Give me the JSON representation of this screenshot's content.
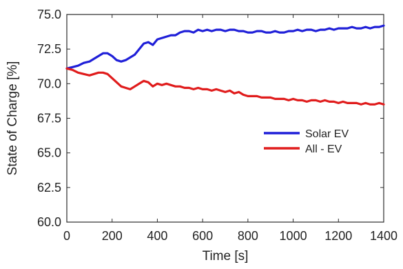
{
  "chart_data": {
    "type": "line",
    "xlabel": "Time [s]",
    "ylabel": "State of Charge [%]",
    "xlim": [
      0,
      1400
    ],
    "ylim": [
      60.0,
      75.0
    ],
    "xticks": [
      0,
      200,
      400,
      600,
      800,
      1000,
      1200,
      1400
    ],
    "yticks": [
      60.0,
      62.5,
      65.0,
      67.5,
      70.0,
      72.5,
      75.0
    ],
    "xtick_labels": [
      "0",
      "200",
      "400",
      "600",
      "800",
      "1000",
      "1200",
      "1400"
    ],
    "ytick_labels": [
      "60.0",
      "62.5",
      "65.0",
      "67.5",
      "70.0",
      "72.5",
      "75.0"
    ],
    "grid": false,
    "legend_position": "right",
    "series": [
      {
        "name": "Solar EV",
        "color": "#1f1fd8",
        "x": [
          0,
          25,
          50,
          75,
          100,
          120,
          140,
          160,
          180,
          200,
          220,
          240,
          260,
          280,
          300,
          320,
          340,
          360,
          380,
          400,
          420,
          440,
          460,
          480,
          500,
          520,
          540,
          560,
          580,
          600,
          620,
          640,
          660,
          680,
          700,
          720,
          740,
          760,
          780,
          800,
          820,
          840,
          860,
          880,
          900,
          920,
          940,
          960,
          980,
          1000,
          1020,
          1040,
          1060,
          1080,
          1100,
          1120,
          1140,
          1160,
          1180,
          1200,
          1220,
          1240,
          1260,
          1280,
          1300,
          1320,
          1340,
          1360,
          1380,
          1400
        ],
        "y": [
          71.1,
          71.2,
          71.3,
          71.5,
          71.6,
          71.8,
          72.0,
          72.2,
          72.2,
          72.0,
          71.7,
          71.6,
          71.7,
          71.9,
          72.1,
          72.5,
          72.9,
          73.0,
          72.8,
          73.2,
          73.3,
          73.4,
          73.5,
          73.5,
          73.7,
          73.8,
          73.8,
          73.7,
          73.9,
          73.8,
          73.9,
          73.8,
          73.9,
          73.9,
          73.8,
          73.9,
          73.9,
          73.8,
          73.8,
          73.7,
          73.7,
          73.8,
          73.8,
          73.7,
          73.7,
          73.8,
          73.7,
          73.7,
          73.8,
          73.8,
          73.9,
          73.8,
          73.9,
          73.9,
          73.8,
          73.9,
          73.9,
          74.0,
          73.9,
          74.0,
          74.0,
          74.0,
          74.1,
          74.0,
          74.0,
          74.1,
          74.0,
          74.1,
          74.1,
          74.2
        ]
      },
      {
        "name": "All - EV",
        "color": "#e01c1c",
        "x": [
          0,
          25,
          50,
          75,
          100,
          120,
          140,
          160,
          180,
          200,
          220,
          240,
          260,
          280,
          300,
          320,
          340,
          360,
          380,
          400,
          420,
          440,
          460,
          480,
          500,
          520,
          540,
          560,
          580,
          600,
          620,
          640,
          660,
          680,
          700,
          720,
          740,
          760,
          780,
          800,
          820,
          840,
          860,
          880,
          900,
          920,
          940,
          960,
          980,
          1000,
          1020,
          1040,
          1060,
          1080,
          1100,
          1120,
          1140,
          1160,
          1180,
          1200,
          1220,
          1240,
          1260,
          1280,
          1300,
          1320,
          1340,
          1360,
          1380,
          1400
        ],
        "y": [
          71.1,
          71.0,
          70.8,
          70.7,
          70.6,
          70.7,
          70.8,
          70.8,
          70.7,
          70.4,
          70.1,
          69.8,
          69.7,
          69.6,
          69.8,
          70.0,
          70.2,
          70.1,
          69.8,
          70.0,
          69.9,
          70.0,
          69.9,
          69.8,
          69.8,
          69.7,
          69.7,
          69.6,
          69.7,
          69.6,
          69.6,
          69.5,
          69.6,
          69.5,
          69.4,
          69.5,
          69.3,
          69.4,
          69.2,
          69.1,
          69.1,
          69.1,
          69.0,
          69.0,
          69.0,
          68.9,
          68.9,
          68.9,
          68.8,
          68.9,
          68.8,
          68.8,
          68.7,
          68.8,
          68.8,
          68.7,
          68.8,
          68.7,
          68.7,
          68.6,
          68.7,
          68.6,
          68.6,
          68.6,
          68.5,
          68.6,
          68.5,
          68.5,
          68.6,
          68.5
        ]
      }
    ]
  }
}
